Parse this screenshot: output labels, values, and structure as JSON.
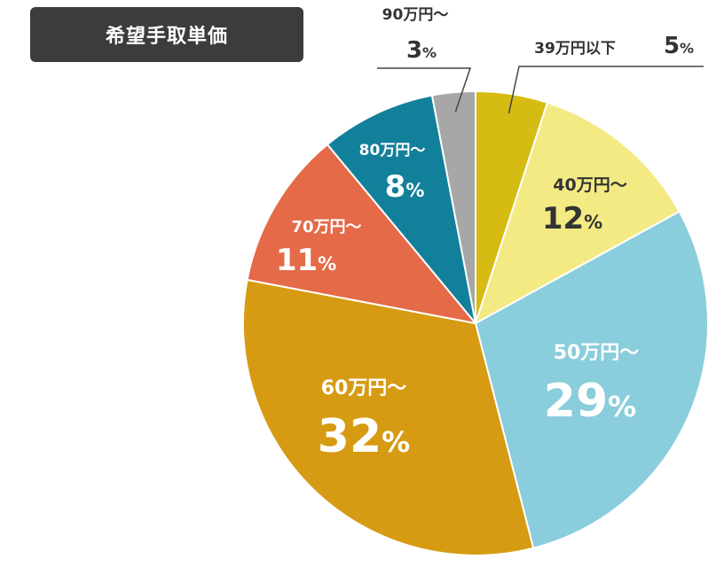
{
  "title": "希望手取単価",
  "colors": {
    "badge_bg": "#3c3c3c",
    "divider": "#444444",
    "slice_border": "#ffffff"
  },
  "chart_data": {
    "type": "pie",
    "title": "希望手取単価",
    "start_angle_deg": 0,
    "direction": "clockwise",
    "slices": [
      {
        "label": "39万円以下",
        "value": 5,
        "percent_text": "5",
        "color": "#d6bb12",
        "text_color": "#333333"
      },
      {
        "label": "40万円～",
        "value": 12,
        "percent_text": "12",
        "color": "#f3ea84",
        "text_color": "#333333"
      },
      {
        "label": "50万円～",
        "value": 29,
        "percent_text": "29",
        "color": "#8acddc",
        "text_color": "#ffffff"
      },
      {
        "label": "60万円～",
        "value": 32,
        "percent_text": "32",
        "color": "#d69b12",
        "text_color": "#ffffff"
      },
      {
        "label": "70万円～",
        "value": 11,
        "percent_text": "11",
        "color": "#e46a48",
        "text_color": "#ffffff"
      },
      {
        "label": "80万円～",
        "value": 8,
        "percent_text": "8",
        "color": "#12809a",
        "text_color": "#ffffff"
      },
      {
        "label": "90万円～",
        "value": 3,
        "percent_text": "3",
        "color": "#a7a7a7",
        "text_color": "#333333"
      }
    ],
    "percent_suffix": "%",
    "legend": "none"
  }
}
